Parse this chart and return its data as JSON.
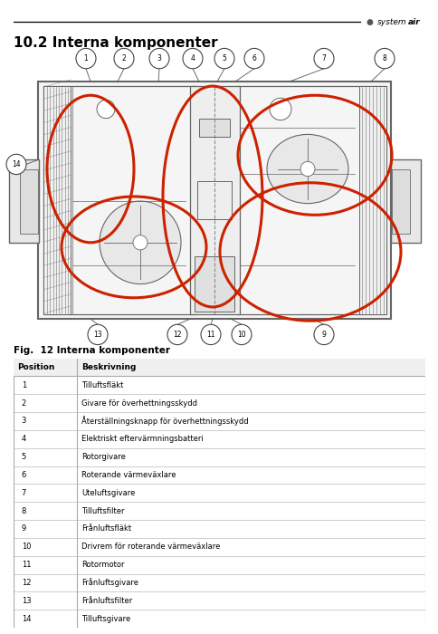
{
  "title_section": "10.2 Interna komponenter",
  "fig_caption": "Fig.  12 Interna komponenter",
  "logo_text": "systemair",
  "table_headers": [
    "Position",
    "Beskrivning"
  ],
  "table_rows": [
    [
      "1",
      "Tilluftsfläkt"
    ],
    [
      "2",
      "Givare för överhettningsskydd"
    ],
    [
      "3",
      "Återställningsknapp för överhettningsskydd"
    ],
    [
      "4",
      "Elektriskt eftervärmningsbatteri"
    ],
    [
      "5",
      "Rotorgivare"
    ],
    [
      "6",
      "Roterande värmeväxlare"
    ],
    [
      "7",
      "Uteluftsgivare"
    ],
    [
      "8",
      "Tilluftsfilter"
    ],
    [
      "9",
      "Frånluftsfläkt"
    ],
    [
      "10",
      "Drivrem för roterande värmeväxlare"
    ],
    [
      "11",
      "Rotormotor"
    ],
    [
      "12",
      "Frånluftsgivare"
    ],
    [
      "13",
      "Frånluftsfilter"
    ],
    [
      "14",
      "Tilluftsgivare"
    ]
  ],
  "colors": {
    "red_ellipse": "#cc2200",
    "diagram_line": "#666666",
    "table_header_bg": "#f0f0f0",
    "table_border": "#aaaaaa",
    "bg_color": "#ffffff"
  }
}
